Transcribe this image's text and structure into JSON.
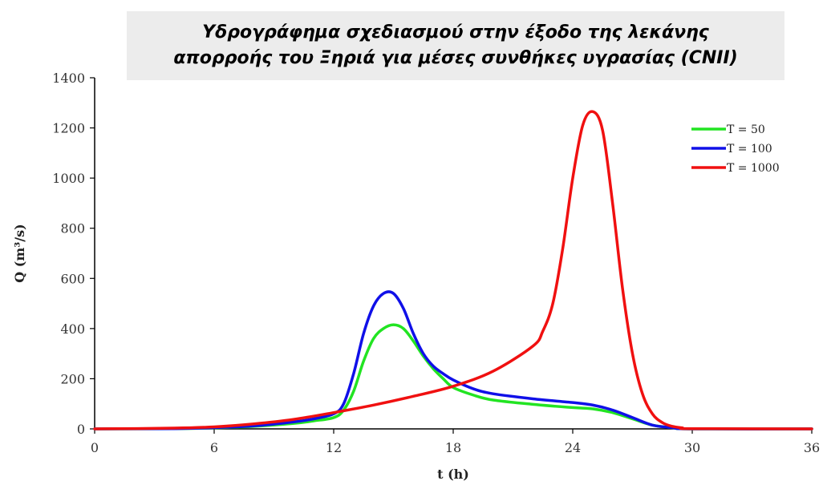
{
  "chart_data": {
    "type": "line",
    "title_lines": [
      "Υδρογράφημα σχεδιασμού στην έξοδο της λεκάνης",
      "απορροής του Ξηριά για μέσες συνθήκες υγρασίας (CNII)"
    ],
    "xlabel": "t (h)",
    "ylabel": "Q (m³/s)",
    "xlim": [
      0,
      36
    ],
    "ylim": [
      0,
      1400
    ],
    "xticks": [
      0,
      6,
      12,
      18,
      24,
      30,
      36
    ],
    "yticks": [
      0,
      200,
      400,
      600,
      800,
      1000,
      1200,
      1400
    ],
    "grid": false,
    "legend_position": "top-right",
    "series": [
      {
        "name": "T = 50",
        "color": "#22e422",
        "x": [
          0,
          4,
          6,
          8,
          10,
          11,
          12,
          12.5,
          13,
          13.5,
          14,
          14.5,
          15,
          15.5,
          16,
          16.5,
          17,
          17.5,
          18,
          19,
          20,
          22,
          24,
          25,
          26,
          27,
          28,
          29,
          30,
          36
        ],
        "y": [
          0,
          1,
          4,
          10,
          22,
          32,
          45,
          75,
          150,
          270,
          360,
          400,
          415,
          400,
          350,
          290,
          240,
          200,
          165,
          135,
          115,
          98,
          85,
          80,
          65,
          40,
          15,
          5,
          0,
          0
        ]
      },
      {
        "name": "T = 100",
        "color": "#1010e8",
        "x": [
          0,
          4,
          6,
          8,
          10,
          11,
          12,
          12.5,
          13,
          13.5,
          14,
          14.5,
          15,
          15.5,
          16,
          16.5,
          17,
          17.5,
          18,
          19,
          20,
          22,
          24,
          25,
          26,
          27,
          28,
          29,
          30,
          36
        ],
        "y": [
          0,
          1,
          5,
          12,
          28,
          40,
          60,
          100,
          220,
          380,
          490,
          540,
          540,
          480,
          380,
          300,
          250,
          220,
          195,
          160,
          140,
          120,
          105,
          95,
          75,
          45,
          15,
          5,
          0,
          0
        ]
      },
      {
        "name": "T = 1000",
        "color": "#f01010",
        "x": [
          0,
          4,
          6,
          8,
          10,
          12,
          14,
          16,
          18,
          20,
          22,
          22.5,
          23,
          23.5,
          24,
          24.5,
          25,
          25.5,
          26,
          26.5,
          27,
          27.5,
          28,
          28.5,
          29,
          29.5,
          30,
          36
        ],
        "y": [
          0,
          3,
          8,
          20,
          38,
          65,
          95,
          130,
          170,
          230,
          330,
          390,
          500,
          720,
          1000,
          1210,
          1265,
          1190,
          900,
          560,
          300,
          140,
          60,
          25,
          10,
          4,
          1,
          0
        ]
      }
    ]
  }
}
